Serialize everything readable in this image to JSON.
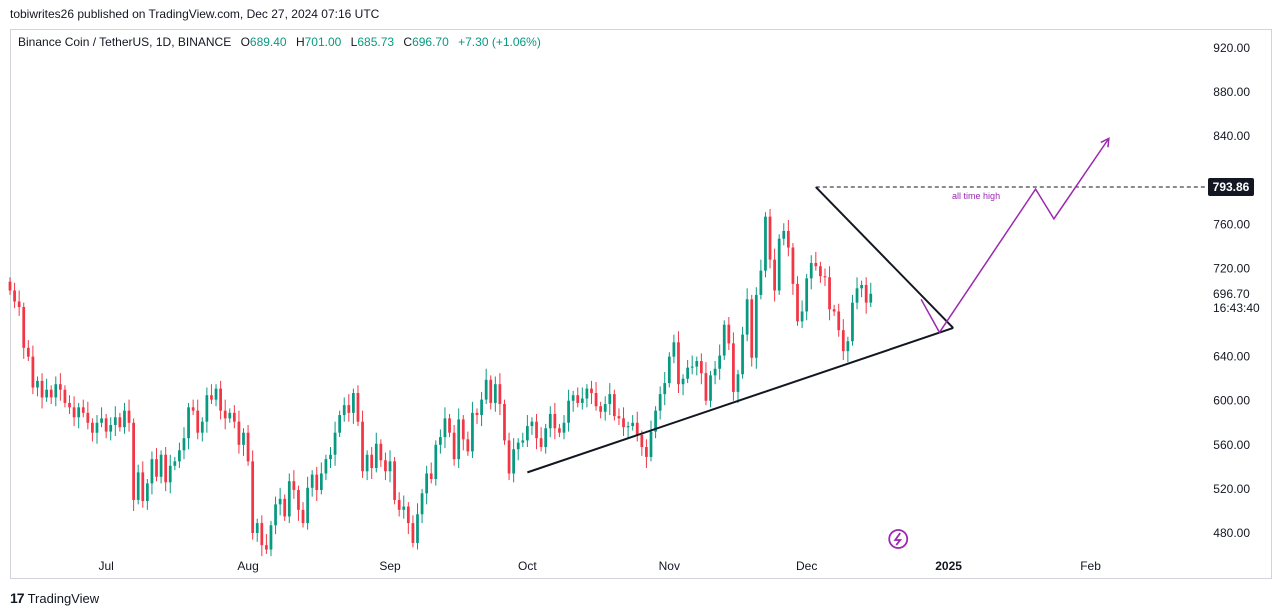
{
  "publisher_line": "tobiwrites26 published on TradingView.com, Dec 27, 2024 07:16 UTC",
  "legend": {
    "symbol": "Binance Coin / TetherUS, 1D, BINANCE",
    "o_label": "O",
    "o": "689.40",
    "h_label": "H",
    "h": "701.00",
    "l_label": "L",
    "l": "685.73",
    "c_label": "C",
    "c": "696.70",
    "change": "+7.30 (+1.06%)"
  },
  "footer": {
    "logo_mark": "17",
    "logo_text": "TradingView"
  },
  "colors": {
    "up": "#089981",
    "down": "#f23645",
    "trendline": "#131722",
    "projection": "#9c27b0",
    "axis_text": "#131722"
  },
  "chart_data": {
    "type": "candlestick",
    "y_axis": {
      "min": 450,
      "max": 940,
      "ticks": [
        480,
        520,
        560,
        600,
        640,
        680,
        720,
        760,
        800,
        840,
        880,
        920
      ],
      "tick_labels": [
        "480.00",
        "520.00",
        "560.00",
        "600.00",
        "640.00",
        "",
        "720.00",
        "760.00",
        "",
        "840.00",
        "880.00",
        "920.00"
      ]
    },
    "x_axis": {
      "labels": [
        "Jul",
        "Aug",
        "Sep",
        "Oct",
        "Nov",
        "Dec",
        "2025",
        "Feb"
      ],
      "label_dates": [
        "2024-07-01",
        "2024-08-01",
        "2024-09-01",
        "2024-10-01",
        "2024-11-01",
        "2024-12-01",
        "2025-01-01",
        "2025-02-01"
      ],
      "range": [
        "2024-06-10",
        "2025-02-26"
      ]
    },
    "price_label": {
      "value": "696.70",
      "countdown": "16:43:40"
    },
    "ath_label": {
      "value": "793.86",
      "text": "all time high"
    },
    "closes": [
      700,
      690,
      685,
      648,
      640,
      612,
      618,
      603,
      610,
      603,
      615,
      610,
      598,
      594,
      585,
      594,
      589,
      580,
      571,
      580,
      584,
      572,
      578,
      585,
      576,
      591,
      580,
      510,
      535,
      509,
      525,
      547,
      531,
      551,
      526,
      541,
      545,
      555,
      566,
      594,
      591,
      571,
      581,
      605,
      601,
      611,
      591,
      584,
      589,
      581,
      560,
      571,
      545,
      480,
      489,
      469,
      465,
      487,
      506,
      511,
      495,
      527,
      519,
      501,
      489,
      521,
      533,
      519,
      534,
      547,
      551,
      571,
      587,
      596,
      589,
      607,
      581,
      536,
      551,
      539,
      561,
      546,
      536,
      545,
      510,
      501,
      504,
      489,
      471,
      497,
      516,
      534,
      529,
      560,
      567,
      584,
      571,
      547,
      583,
      565,
      554,
      589,
      587,
      601,
      619,
      598,
      615,
      597,
      564,
      534,
      556,
      562,
      564,
      577,
      581,
      566,
      558,
      575,
      588,
      575,
      571,
      580,
      600,
      605,
      598,
      602,
      611,
      607,
      595,
      590,
      597,
      606,
      586,
      584,
      576,
      577,
      580,
      569,
      558,
      549,
      572,
      591,
      606,
      616,
      640,
      653,
      615,
      620,
      630,
      631,
      636,
      625,
      600,
      623,
      629,
      641,
      669,
      652,
      608,
      624,
      660,
      692,
      639,
      696,
      718,
      767,
      728,
      700,
      747,
      754,
      739,
      706,
      672,
      681,
      711,
      725,
      722,
      713,
      712,
      683,
      681,
      664,
      645,
      654,
      689,
      702,
      705,
      689,
      697
    ],
    "trendlines": [
      {
        "from": [
          "2024-10-01",
          535
        ],
        "to": [
          "2025-01-02",
          666
        ]
      },
      {
        "from": [
          "2024-12-03",
          793.86
        ],
        "to": [
          "2025-01-02",
          666
        ]
      }
    ],
    "ath_line": {
      "from": "2024-12-03",
      "to": "2025-02-26",
      "value": 793.86
    },
    "projection_path": [
      [
        "2024-12-26",
        692
      ],
      [
        "2024-12-30",
        662
      ],
      [
        "2025-01-20",
        792
      ],
      [
        "2025-01-24",
        765
      ],
      [
        "2025-02-05",
        838
      ]
    ]
  }
}
